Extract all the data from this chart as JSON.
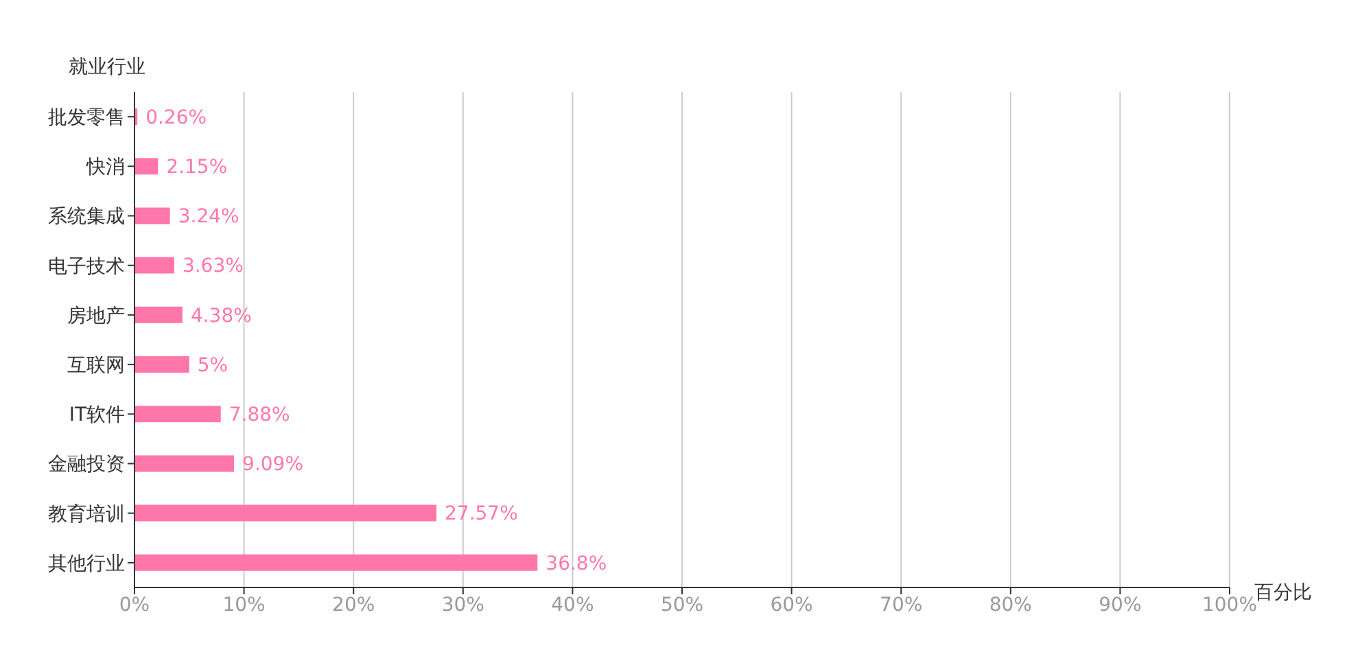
{
  "chart_data": {
    "type": "bar",
    "orientation": "horizontal",
    "ylabel": "就业行业",
    "xlabel": "百分比",
    "categories": [
      "批发零售",
      "快消",
      "系统集成",
      "电子技术",
      "房地产",
      "互联网",
      "IT软件",
      "金融投资",
      "教育培训",
      "其他行业"
    ],
    "values": [
      0.26,
      2.15,
      3.24,
      3.63,
      4.38,
      5,
      7.88,
      9.09,
      27.57,
      36.8
    ],
    "value_labels": [
      "0.26%",
      "2.15%",
      "3.24%",
      "3.63%",
      "4.38%",
      "5%",
      "7.88%",
      "9.09%",
      "27.57%",
      "36.8%"
    ],
    "color": "#ff77aa",
    "xlim": [
      0,
      100
    ],
    "xticks": [
      {
        "value": 0,
        "label": "0%"
      },
      {
        "value": 10,
        "label": "10%"
      },
      {
        "value": 20,
        "label": "20%"
      },
      {
        "value": 30,
        "label": "30%"
      },
      {
        "value": 40,
        "label": "40%"
      },
      {
        "value": 50,
        "label": "50%"
      },
      {
        "value": 60,
        "label": "60%"
      },
      {
        "value": 70,
        "label": "70%"
      },
      {
        "value": 80,
        "label": "80%"
      },
      {
        "value": 90,
        "label": "90%"
      },
      {
        "value": 100,
        "label": "100%"
      }
    ],
    "grid": "x",
    "legend": false
  }
}
